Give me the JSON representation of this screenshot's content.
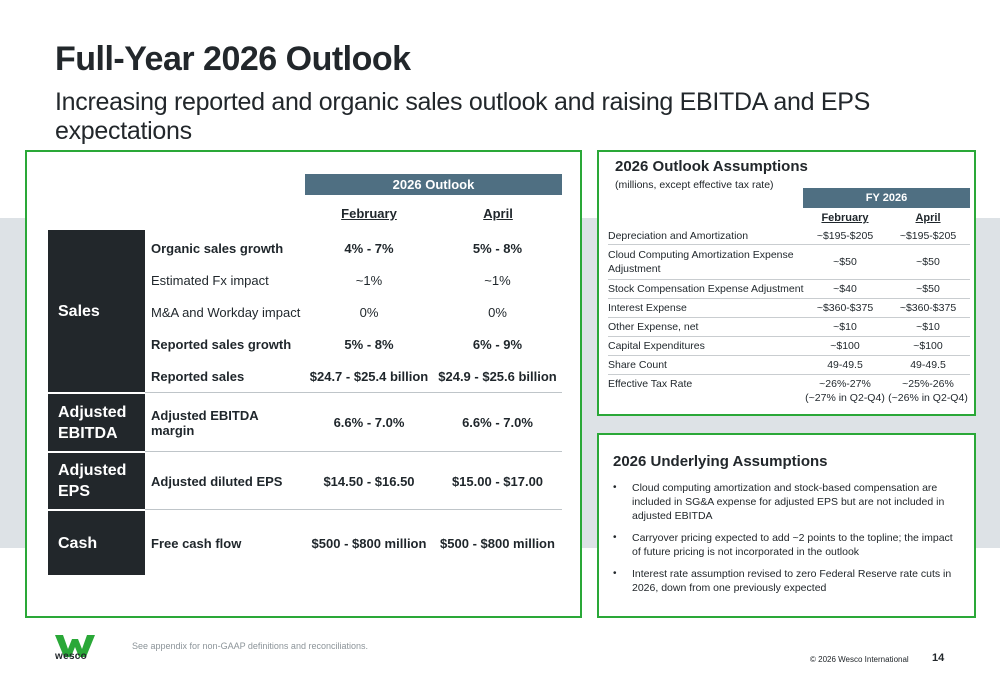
{
  "title": "Full-Year 2026 Outlook",
  "subtitle": "Increasing reported and organic sales outlook and raising EBITDA and EPS expectations",
  "outlook": {
    "header": "2026  Outlook",
    "col_feb": "February",
    "col_apr": "April",
    "categories": {
      "sales": "Sales",
      "ebitda": "Adjusted EBITDA",
      "eps": "Adjusted EPS",
      "cash": "Cash"
    },
    "rows": [
      {
        "label": "Organic sales growth",
        "feb": "4% - 7%",
        "apr": "5% - 8%"
      },
      {
        "label": "Estimated Fx impact",
        "feb": "~1%",
        "apr": "~1%"
      },
      {
        "label": "M&A and Workday impact",
        "feb": "0%",
        "apr": "0%"
      },
      {
        "label": "Reported sales growth",
        "feb": "5% - 8%",
        "apr": "6% - 9%"
      },
      {
        "label": "Reported sales",
        "feb": "$24.7 - $25.4 billion",
        "apr": "$24.9 - $25.6 billion"
      },
      {
        "label": "Adjusted EBITDA margin",
        "feb": "6.6% - 7.0%",
        "apr": "6.6% - 7.0%"
      },
      {
        "label": "Adjusted diluted EPS",
        "feb": "$14.50 - $16.50",
        "apr": "$15.00 - $17.00"
      },
      {
        "label": "Free cash flow",
        "feb": "$500 - $800 million",
        "apr": "$500 - $800 million"
      }
    ]
  },
  "assumptions": {
    "title": "2026 Outlook Assumptions",
    "subtitle": "(millions, except effective tax rate)",
    "fy_header": "FY 2026",
    "col_feb": "February",
    "col_apr": "April",
    "rows": [
      {
        "label": "Depreciation and Amortization",
        "feb": "~$195-$205",
        "apr": "~$195-$205"
      },
      {
        "label": "Cloud Computing Amortization Expense Adjustment",
        "feb": "~$50",
        "apr": "~$50"
      },
      {
        "label": "Stock Compensation Expense Adjustment",
        "feb": "~$40",
        "apr": "~$50"
      },
      {
        "label": "Interest Expense",
        "feb": "~$360-$375",
        "apr": "~$360-$375"
      },
      {
        "label": "Other Expense, net",
        "feb": "~$10",
        "apr": "~$10"
      },
      {
        "label": "Capital Expenditures",
        "feb": "~$100",
        "apr": "~$100"
      },
      {
        "label": "Share Count",
        "feb": "49-49.5",
        "apr": "49-49.5"
      },
      {
        "label": "Effective Tax Rate",
        "feb": "~26%-27%",
        "feb2": "(~27% in Q2-Q4)",
        "apr": "~25%-26%",
        "apr2": "(~26% in Q2-Q4)"
      }
    ]
  },
  "underlying": {
    "title": "2026 Underlying Assumptions",
    "bullet_char": "•",
    "items": [
      "Cloud computing amortization and stock-based compensation are included in SG&A expense for adjusted EPS but are not included in adjusted EBITDA",
      "Carryover pricing expected to add ~2 points to the topline; the impact of future pricing is not incorporated in the outlook",
      "Interest rate assumption revised to zero Federal Reserve rate cuts in 2026, down from one previously expected"
    ]
  },
  "footer": {
    "logo_text": "wesco",
    "note": "See appendix for non-GAAP definitions and reconciliations.",
    "copyright": "© 2026 Wesco International",
    "page": "14"
  },
  "colors": {
    "accent_green": "#2aa838",
    "header_blue": "#4f6f82",
    "dark": "#22272b",
    "band": "#dde2e6"
  }
}
